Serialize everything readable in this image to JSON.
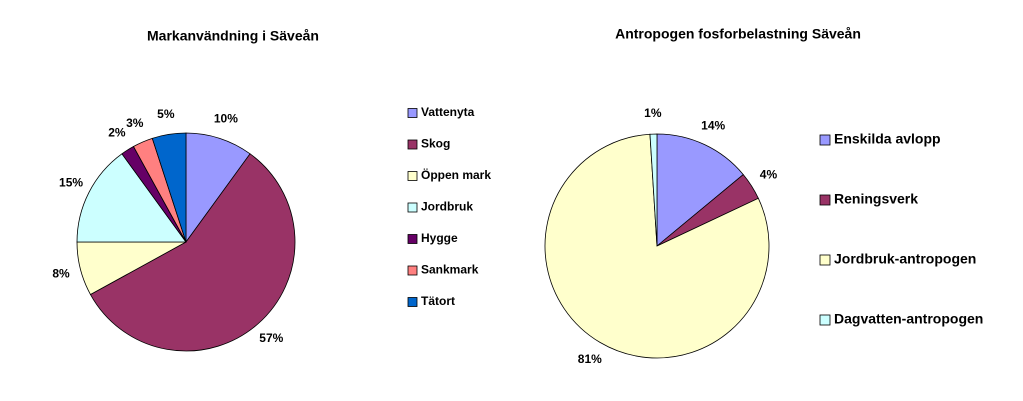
{
  "chart_data": [
    {
      "type": "pie",
      "title": "Markanvändning i Säveån",
      "categories": [
        "Vattenyta",
        "Skog",
        "Öppen mark",
        "Jordbruk",
        "Hygge",
        "Sankmark",
        "Tätort"
      ],
      "values": [
        10,
        57,
        8,
        15,
        2,
        3,
        5
      ],
      "value_labels": [
        "10%",
        "57%",
        "8%",
        "15%",
        "2%",
        "3%",
        "5%"
      ],
      "colors": [
        "#9999ff",
        "#993366",
        "#ffffcc",
        "#ccffff",
        "#660066",
        "#ff8080",
        "#0066cc"
      ]
    },
    {
      "type": "pie",
      "title": "Antropogen fosforbelastning Säveån",
      "categories": [
        "Enskilda avlopp",
        "Reningsverk",
        "Jordbruk-antropogen",
        "Dagvatten-antropogen"
      ],
      "values": [
        14,
        4,
        81,
        1
      ],
      "value_labels": [
        "14%",
        "4%",
        "81%",
        "1%"
      ],
      "colors": [
        "#9999ff",
        "#993366",
        "#ffffcc",
        "#ccffff"
      ]
    }
  ]
}
